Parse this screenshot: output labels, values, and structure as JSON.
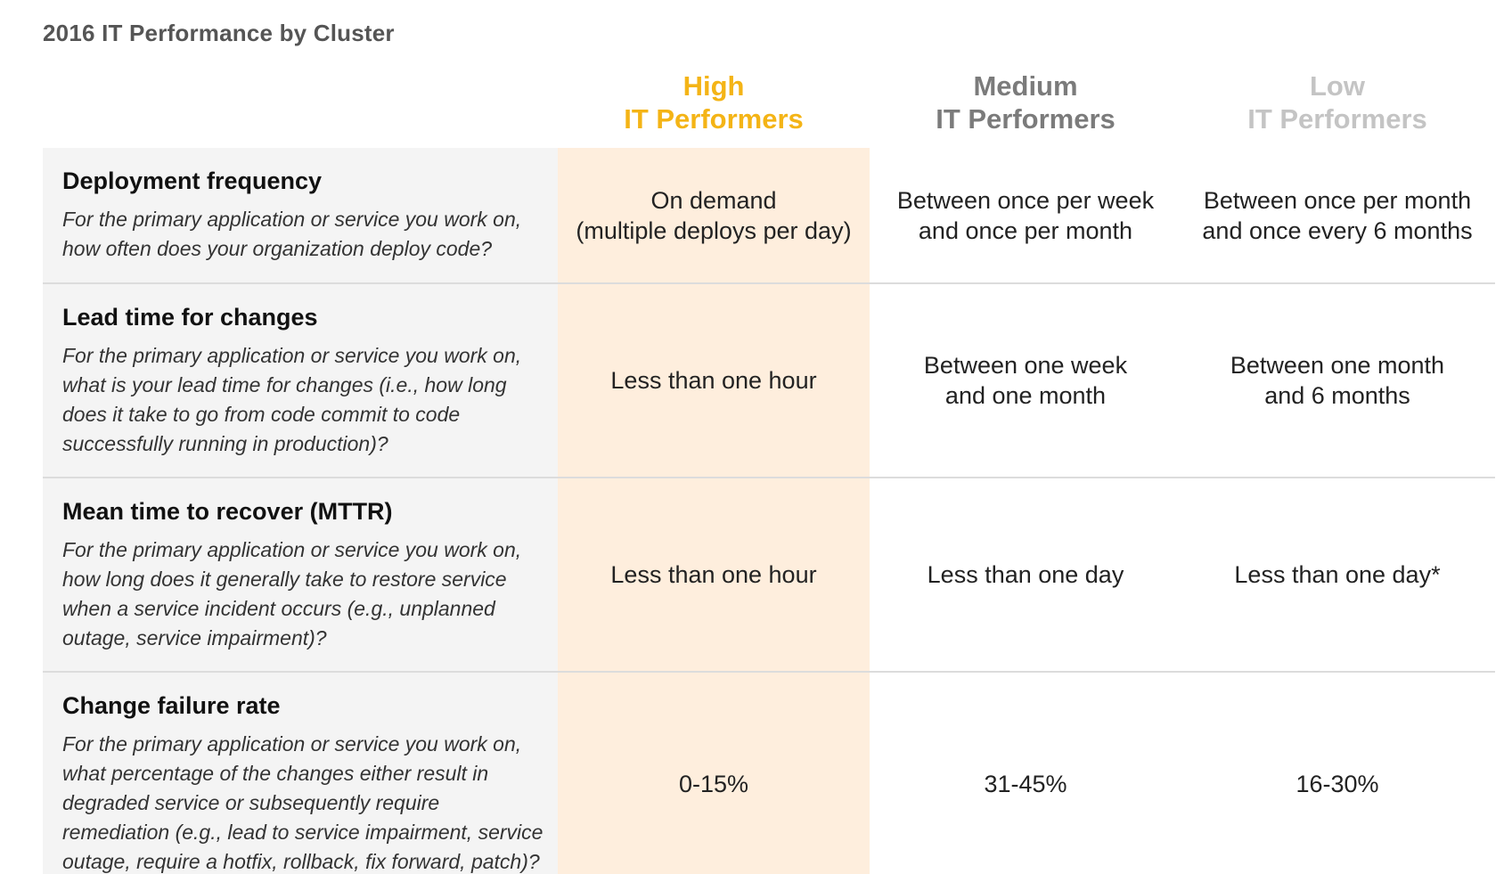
{
  "title": "2016 IT Performance by Cluster",
  "columns": {
    "high": {
      "line1": "High",
      "line2": "IT Performers",
      "color": "#f4b416"
    },
    "medium": {
      "line1": "Medium",
      "line2": "IT Performers",
      "color": "#7b7b7b"
    },
    "low": {
      "line1": "Low",
      "line2": "IT Performers",
      "color": "#c4c4c4"
    }
  },
  "highlight_color": "#feeedd",
  "rows": [
    {
      "metric": "Deployment frequency",
      "question": "For the primary application or service you work on, how often does your organization deploy code?",
      "high": "On demand\n(multiple deploys per day)",
      "medium": "Between once per week\nand once per month",
      "low": "Between once per month\nand once every 6 months"
    },
    {
      "metric": "Lead time for changes",
      "question": "For the primary application or service you work on, what is your lead time for changes (i.e., how long does it take to go from code commit to code successfully running in production)?",
      "high": "Less than one hour",
      "medium": "Between one week\nand one month",
      "low": "Between one month\nand 6 months"
    },
    {
      "metric": "Mean time to recover (MTTR)",
      "question": "For the primary application or service you work on, how long does it generally take to restore service when a service incident occurs (e.g., unplanned outage, service impairment)?",
      "high": "Less than one hour",
      "medium": "Less than one day",
      "low": "Less than one day*"
    },
    {
      "metric": "Change failure rate",
      "question": "For the primary application or service you work on, what percentage of the changes either result in degraded service or subsequently require remediation (e.g., lead to service impairment, service outage, require a hotfix, rollback, fix forward, patch)?",
      "high": "0-15%",
      "medium": "31-45%",
      "low": "16-30%"
    }
  ]
}
